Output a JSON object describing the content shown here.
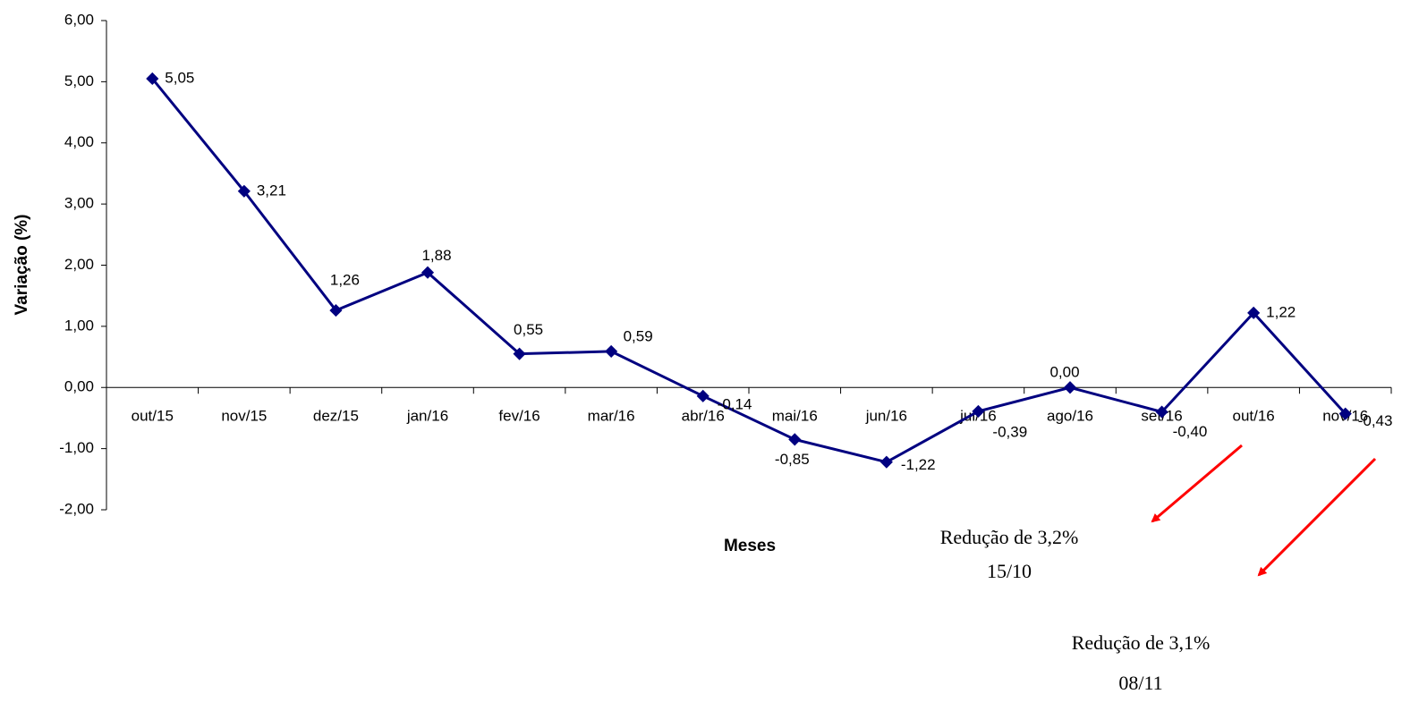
{
  "chart_data": {
    "type": "line",
    "y_label": "Variação (%)",
    "x_label": "Meses",
    "categories": [
      "out/15",
      "nov/15",
      "dez/15",
      "jan/16",
      "fev/16",
      "mar/16",
      "abr/16",
      "mai/16",
      "jun/16",
      "jul/16",
      "ago/16",
      "set/16",
      "out/16",
      "nov/16"
    ],
    "series": [
      {
        "color": "#000080",
        "values": [
          5.05,
          3.21,
          1.26,
          1.88,
          0.55,
          0.59,
          -0.14,
          -0.85,
          -1.22,
          -0.39,
          0.0,
          -0.4,
          1.22,
          -0.43
        ],
        "value_labels": [
          "5,05",
          "3,21",
          "1,26",
          "1,88",
          "0,55",
          "0,59",
          "-0,14",
          "-0,85",
          "-1,22",
          "-0,39",
          "0,00",
          "-0,40",
          "1,22",
          "-0,43"
        ]
      }
    ],
    "ylim": [
      -2,
      6
    ],
    "yticks": [
      {
        "value": -2,
        "label": "-2,00"
      },
      {
        "value": -1,
        "label": "-1,00"
      },
      {
        "value": 0,
        "label": "0,00"
      },
      {
        "value": 1,
        "label": "1,00"
      },
      {
        "value": 2,
        "label": "2,00"
      },
      {
        "value": 3,
        "label": "3,00"
      },
      {
        "value": 4,
        "label": "4,00"
      },
      {
        "value": 5,
        "label": "5,00"
      },
      {
        "value": 6,
        "label": "6,00"
      }
    ],
    "annotations": [
      "Redução de 3,2%",
      "15/10",
      "Redução de 3,1%",
      "08/11"
    ]
  }
}
